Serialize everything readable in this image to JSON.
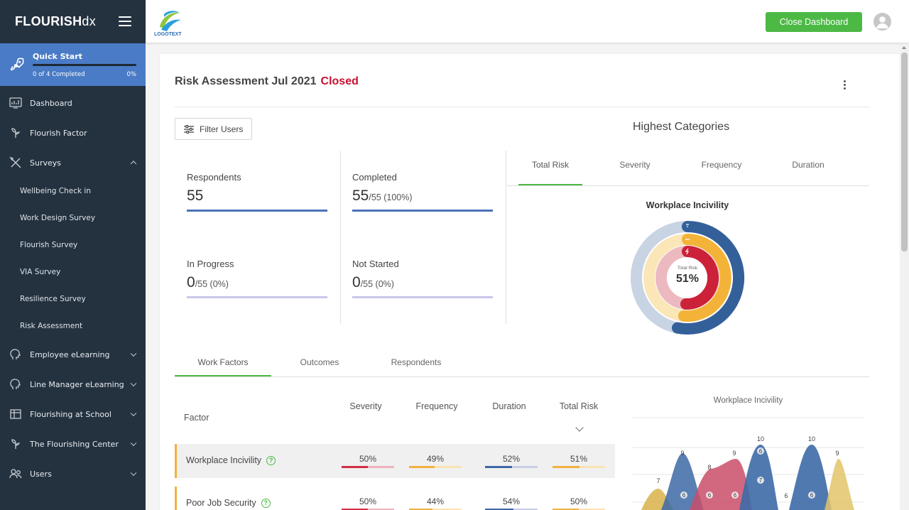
{
  "brand": {
    "name_bold": "FLOURISH",
    "name_light": "dx"
  },
  "quick_start": {
    "title": "Quick Start",
    "progress_text": "0 of 4 Completed",
    "percent": "0%",
    "progress": 0
  },
  "nav": {
    "dashboard": "Dashboard",
    "flourish_factor": "Flourish Factor",
    "surveys": "Surveys",
    "surveys_sub": [
      "Wellbeing Check in",
      "Work Design Survey",
      "Flourish Survey",
      "VIA Survey",
      "Resilience Survey",
      "Risk Assessment"
    ],
    "employee_elearning": "Employee eLearning",
    "line_manager_elearning": "Line Manager eLearning",
    "flourishing_school": "Flourishing at School",
    "flourishing_center": "The Flourishing Center",
    "users": "Users"
  },
  "topbar": {
    "logo_text": "LOGOTEXT",
    "close_button": "Close Dashboard"
  },
  "page": {
    "title": "Risk Assessment Jul 2021",
    "status": "Closed",
    "filter_button": "Filter Users"
  },
  "stats": {
    "respondents": {
      "label": "Respondents",
      "value": "55"
    },
    "completed": {
      "label": "Completed",
      "value": "55",
      "suffix": "/55 (100%)"
    },
    "in_progress": {
      "label": "In Progress",
      "value": "0",
      "suffix": "/55 (0%)"
    },
    "not_started": {
      "label": "Not Started",
      "value": "0",
      "suffix": "/55 (0%)"
    }
  },
  "highest": {
    "title": "Highest Categories",
    "tabs": [
      "Total Risk",
      "Severity",
      "Frequency",
      "Duration"
    ],
    "chart_title": "Workplace Incivility",
    "center_label": "Total Risk",
    "center_value": "51%"
  },
  "bottom_tabs": [
    "Work Factors",
    "Outcomes",
    "Respondents"
  ],
  "table": {
    "headers": {
      "factor": "Factor",
      "severity": "Severity",
      "frequency": "Frequency",
      "duration": "Duration",
      "total": "Total Risk"
    },
    "rows": [
      {
        "factor": "Workplace Incivility",
        "severity": "50%",
        "frequency": "49%",
        "duration": "52%",
        "total": "51%"
      },
      {
        "factor": "Poor Job Security",
        "severity": "50%",
        "frequency": "44%",
        "duration": "54%",
        "total": "50%"
      }
    ]
  },
  "colors": {
    "sidebar": "#243240",
    "accent": "#4cb944",
    "blue": "#4a7bc6",
    "red": "#c8102e",
    "severity": "#d12f45",
    "frequency": "#f0b23e",
    "duration": "#3e66a8"
  },
  "chart_data": {
    "type": "area",
    "title": "Workplace Incivility",
    "series_labels_top": [
      "7",
      "9",
      "8",
      "9",
      "10",
      "6",
      "10",
      "9"
    ],
    "series_labels_mid": [
      "6",
      "6",
      "6",
      "6",
      "7",
      "6"
    ]
  }
}
